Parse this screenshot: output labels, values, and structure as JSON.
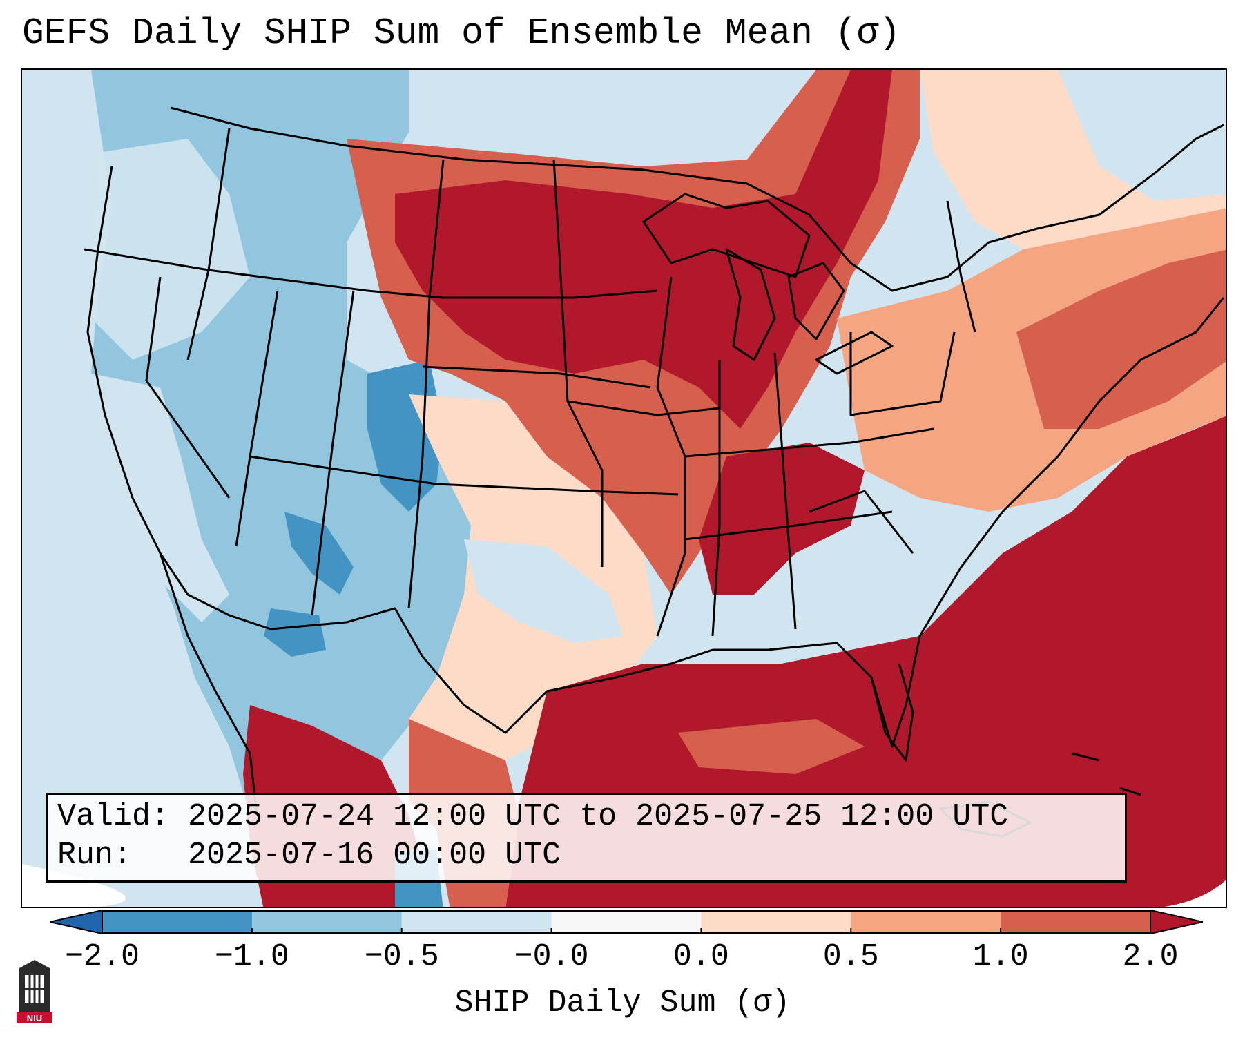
{
  "title": "GEFS Daily SHIP Sum of Ensemble Mean (σ)",
  "info": {
    "valid_label": "Valid:",
    "valid_value": "2025-07-24 12:00 UTC to 2025-07-25 12:00 UTC",
    "run_label": "Run:",
    "run_value": "2025-07-16 00:00 UTC"
  },
  "colorbar": {
    "label": "SHIP Daily Sum (σ)",
    "ticks": [
      "−2.0",
      "−1.0",
      "−0.5",
      "−0.0",
      "0.0",
      "0.5",
      "1.0",
      "2.0"
    ],
    "bins": [
      {
        "range": "below -2.0",
        "color": "#2166ac"
      },
      {
        "range": "-2.0 to -1.0",
        "color": "#4393c3"
      },
      {
        "range": "-1.0 to -0.5",
        "color": "#92c5de"
      },
      {
        "range": "-0.5 to -0.0",
        "color": "#d1e5f0"
      },
      {
        "range": "-0.0 to 0.0",
        "color": "#f7f7f7"
      },
      {
        "range": "0.0 to 0.5",
        "color": "#fddbc7"
      },
      {
        "range": "0.5 to 1.0",
        "color": "#f4a582"
      },
      {
        "range": "1.0 to 2.0",
        "color": "#d6604d"
      },
      {
        "range": "above 2.0",
        "color": "#b2182b"
      }
    ]
  },
  "logo": {
    "text": "NIU",
    "icon": "niu-tower-icon"
  },
  "colors": {
    "strong_pos": "#b2182b",
    "pos": "#d6604d",
    "mild_pos": "#f4a582",
    "light_pos": "#fddbc7",
    "light_neg": "#d1e5f0",
    "mild_neg": "#92c5de",
    "neg": "#4393c3"
  }
}
